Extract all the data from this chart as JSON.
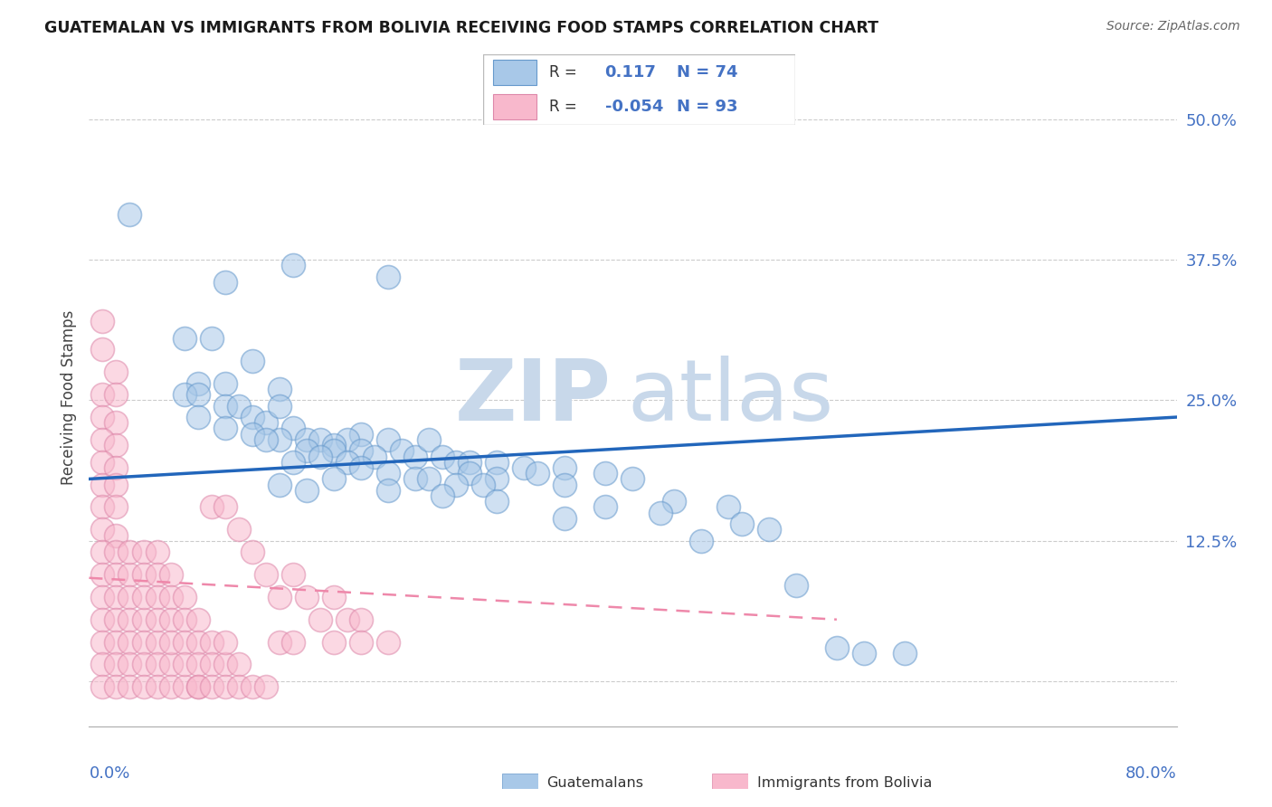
{
  "title": "GUATEMALAN VS IMMIGRANTS FROM BOLIVIA RECEIVING FOOD STAMPS CORRELATION CHART",
  "source": "Source: ZipAtlas.com",
  "ylabel": "Receiving Food Stamps",
  "yticks": [
    0.0,
    0.125,
    0.25,
    0.375,
    0.5
  ],
  "ytick_labels": [
    "",
    "12.5%",
    "25.0%",
    "37.5%",
    "50.0%"
  ],
  "xmin": 0.0,
  "xmax": 0.8,
  "ymin": -0.04,
  "ymax": 0.545,
  "blue_R": "0.117",
  "blue_N": "74",
  "pink_R": "-0.054",
  "pink_N": "93",
  "blue_color": "#a8c8e8",
  "blue_edge_color": "#6699cc",
  "pink_color": "#f8b8cc",
  "pink_edge_color": "#dd88aa",
  "blue_line_color": "#2266bb",
  "pink_line_color": "#ee88aa",
  "watermark_zip": "ZIP",
  "watermark_atlas": "atlas",
  "watermark_color": "#c8d8ea",
  "legend_label_blue": "Guatemalans",
  "legend_label_pink": "Immigrants from Bolivia",
  "blue_trend_x0": 0.0,
  "blue_trend_x1": 0.8,
  "blue_trend_y0": 0.18,
  "blue_trend_y1": 0.235,
  "pink_trend_x0": 0.0,
  "pink_trend_x1": 0.55,
  "pink_trend_y0": 0.092,
  "pink_trend_y1": 0.055,
  "blue_scatter": [
    [
      0.03,
      0.415
    ],
    [
      0.1,
      0.355
    ],
    [
      0.15,
      0.37
    ],
    [
      0.22,
      0.36
    ],
    [
      0.07,
      0.305
    ],
    [
      0.09,
      0.305
    ],
    [
      0.12,
      0.285
    ],
    [
      0.08,
      0.265
    ],
    [
      0.1,
      0.265
    ],
    [
      0.14,
      0.26
    ],
    [
      0.07,
      0.255
    ],
    [
      0.08,
      0.255
    ],
    [
      0.1,
      0.245
    ],
    [
      0.11,
      0.245
    ],
    [
      0.08,
      0.235
    ],
    [
      0.12,
      0.235
    ],
    [
      0.13,
      0.23
    ],
    [
      0.15,
      0.225
    ],
    [
      0.14,
      0.245
    ],
    [
      0.1,
      0.225
    ],
    [
      0.12,
      0.22
    ],
    [
      0.16,
      0.215
    ],
    [
      0.14,
      0.215
    ],
    [
      0.17,
      0.215
    ],
    [
      0.13,
      0.215
    ],
    [
      0.2,
      0.22
    ],
    [
      0.19,
      0.215
    ],
    [
      0.18,
      0.21
    ],
    [
      0.22,
      0.215
    ],
    [
      0.18,
      0.205
    ],
    [
      0.2,
      0.205
    ],
    [
      0.21,
      0.2
    ],
    [
      0.23,
      0.205
    ],
    [
      0.24,
      0.2
    ],
    [
      0.25,
      0.215
    ],
    [
      0.16,
      0.205
    ],
    [
      0.17,
      0.2
    ],
    [
      0.26,
      0.2
    ],
    [
      0.27,
      0.195
    ],
    [
      0.28,
      0.195
    ],
    [
      0.15,
      0.195
    ],
    [
      0.19,
      0.195
    ],
    [
      0.2,
      0.19
    ],
    [
      0.3,
      0.195
    ],
    [
      0.32,
      0.19
    ],
    [
      0.28,
      0.185
    ],
    [
      0.35,
      0.19
    ],
    [
      0.33,
      0.185
    ],
    [
      0.3,
      0.18
    ],
    [
      0.22,
      0.185
    ],
    [
      0.24,
      0.18
    ],
    [
      0.25,
      0.18
    ],
    [
      0.18,
      0.18
    ],
    [
      0.27,
      0.175
    ],
    [
      0.29,
      0.175
    ],
    [
      0.38,
      0.185
    ],
    [
      0.4,
      0.18
    ],
    [
      0.35,
      0.175
    ],
    [
      0.14,
      0.175
    ],
    [
      0.16,
      0.17
    ],
    [
      0.22,
      0.17
    ],
    [
      0.26,
      0.165
    ],
    [
      0.3,
      0.16
    ],
    [
      0.43,
      0.16
    ],
    [
      0.38,
      0.155
    ],
    [
      0.47,
      0.155
    ],
    [
      0.42,
      0.15
    ],
    [
      0.35,
      0.145
    ],
    [
      0.48,
      0.14
    ],
    [
      0.5,
      0.135
    ],
    [
      0.45,
      0.125
    ],
    [
      0.52,
      0.085
    ],
    [
      0.55,
      0.03
    ],
    [
      0.57,
      0.025
    ],
    [
      0.6,
      0.025
    ]
  ],
  "pink_scatter": [
    [
      0.01,
      0.32
    ],
    [
      0.01,
      0.295
    ],
    [
      0.02,
      0.275
    ],
    [
      0.01,
      0.255
    ],
    [
      0.02,
      0.255
    ],
    [
      0.01,
      0.235
    ],
    [
      0.02,
      0.23
    ],
    [
      0.01,
      0.215
    ],
    [
      0.02,
      0.21
    ],
    [
      0.01,
      0.195
    ],
    [
      0.02,
      0.19
    ],
    [
      0.01,
      0.175
    ],
    [
      0.02,
      0.175
    ],
    [
      0.01,
      0.155
    ],
    [
      0.02,
      0.155
    ],
    [
      0.01,
      0.135
    ],
    [
      0.02,
      0.13
    ],
    [
      0.01,
      0.115
    ],
    [
      0.02,
      0.115
    ],
    [
      0.01,
      0.095
    ],
    [
      0.02,
      0.095
    ],
    [
      0.03,
      0.095
    ],
    [
      0.01,
      0.075
    ],
    [
      0.02,
      0.075
    ],
    [
      0.03,
      0.075
    ],
    [
      0.01,
      0.055
    ],
    [
      0.02,
      0.055
    ],
    [
      0.03,
      0.055
    ],
    [
      0.04,
      0.055
    ],
    [
      0.01,
      0.035
    ],
    [
      0.02,
      0.035
    ],
    [
      0.03,
      0.035
    ],
    [
      0.04,
      0.035
    ],
    [
      0.05,
      0.035
    ],
    [
      0.01,
      0.015
    ],
    [
      0.02,
      0.015
    ],
    [
      0.03,
      0.015
    ],
    [
      0.04,
      0.015
    ],
    [
      0.05,
      0.015
    ],
    [
      0.06,
      0.015
    ],
    [
      0.01,
      -0.005
    ],
    [
      0.02,
      -0.005
    ],
    [
      0.03,
      -0.005
    ],
    [
      0.04,
      -0.005
    ],
    [
      0.05,
      -0.005
    ],
    [
      0.06,
      -0.005
    ],
    [
      0.07,
      -0.005
    ],
    [
      0.08,
      -0.005
    ],
    [
      0.03,
      0.115
    ],
    [
      0.04,
      0.115
    ],
    [
      0.05,
      0.115
    ],
    [
      0.04,
      0.095
    ],
    [
      0.05,
      0.095
    ],
    [
      0.06,
      0.095
    ],
    [
      0.04,
      0.075
    ],
    [
      0.05,
      0.075
    ],
    [
      0.06,
      0.075
    ],
    [
      0.07,
      0.075
    ],
    [
      0.05,
      0.055
    ],
    [
      0.06,
      0.055
    ],
    [
      0.07,
      0.055
    ],
    [
      0.08,
      0.055
    ],
    [
      0.06,
      0.035
    ],
    [
      0.07,
      0.035
    ],
    [
      0.08,
      0.035
    ],
    [
      0.09,
      0.035
    ],
    [
      0.07,
      0.015
    ],
    [
      0.08,
      0.015
    ],
    [
      0.09,
      0.015
    ],
    [
      0.1,
      0.015
    ],
    [
      0.11,
      0.015
    ],
    [
      0.08,
      -0.005
    ],
    [
      0.09,
      -0.005
    ],
    [
      0.1,
      -0.005
    ],
    [
      0.11,
      -0.005
    ],
    [
      0.12,
      -0.005
    ],
    [
      0.13,
      -0.005
    ],
    [
      0.09,
      0.155
    ],
    [
      0.1,
      0.155
    ],
    [
      0.11,
      0.135
    ],
    [
      0.12,
      0.115
    ],
    [
      0.13,
      0.095
    ],
    [
      0.14,
      0.075
    ],
    [
      0.15,
      0.095
    ],
    [
      0.16,
      0.075
    ],
    [
      0.17,
      0.055
    ],
    [
      0.18,
      0.075
    ],
    [
      0.19,
      0.055
    ],
    [
      0.2,
      0.055
    ],
    [
      0.14,
      0.035
    ],
    [
      0.15,
      0.035
    ],
    [
      0.18,
      0.035
    ],
    [
      0.2,
      0.035
    ],
    [
      0.22,
      0.035
    ],
    [
      0.1,
      0.035
    ]
  ]
}
